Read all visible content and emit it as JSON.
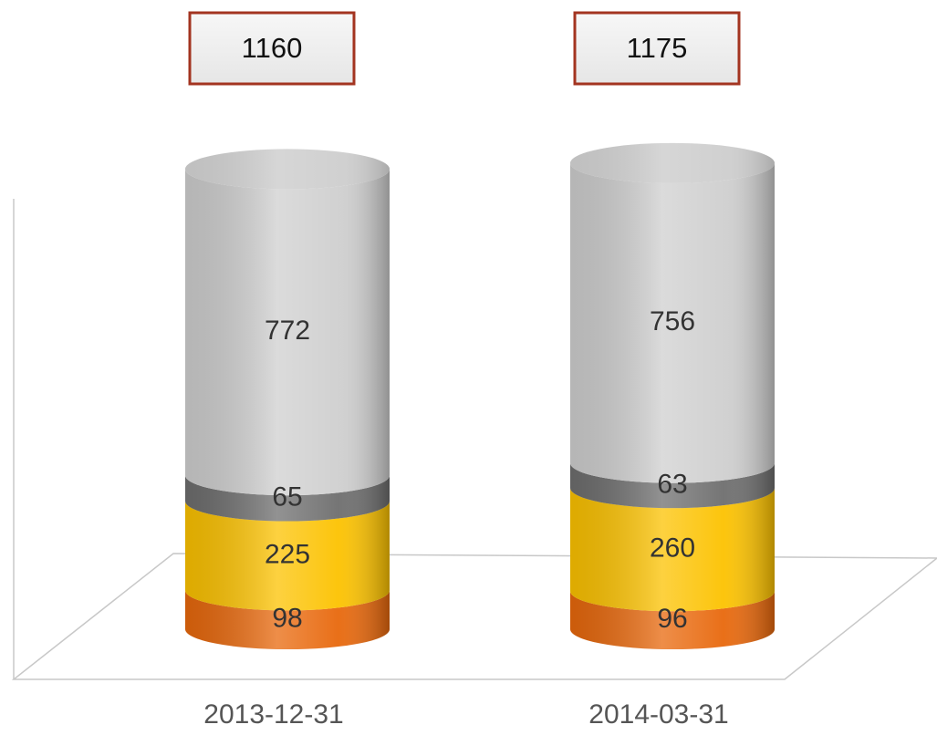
{
  "chart_data": {
    "type": "cylinder-stacked",
    "categories": [
      "2013-12-31",
      "2014-03-31"
    ],
    "series": [
      {
        "color": "#e8680c",
        "values": [
          98,
          96
        ]
      },
      {
        "color": "#fcc200",
        "values": [
          225,
          260
        ]
      },
      {
        "color": "#6e6e6e",
        "values": [
          65,
          63
        ]
      },
      {
        "color": "#cfcfcf",
        "values": [
          772,
          756
        ]
      }
    ],
    "totals": [
      1160,
      1175
    ]
  }
}
